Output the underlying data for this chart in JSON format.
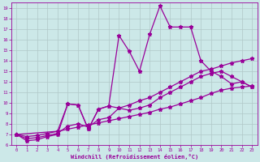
{
  "xlabel": "Windchill (Refroidissement éolien,°C)",
  "bg_color": "#cce8e8",
  "line_color": "#990099",
  "grid_color": "#b0c8c8",
  "xlim": [
    -0.5,
    23.5
  ],
  "ylim": [
    6,
    19.5
  ],
  "xticks": [
    0,
    1,
    2,
    3,
    4,
    5,
    6,
    7,
    8,
    9,
    10,
    11,
    12,
    13,
    14,
    15,
    16,
    17,
    18,
    19,
    20,
    21,
    22,
    23
  ],
  "yticks": [
    6,
    7,
    8,
    9,
    10,
    11,
    12,
    13,
    14,
    15,
    16,
    17,
    18,
    19
  ],
  "line1_x": [
    0,
    1,
    2,
    3,
    4,
    5,
    6,
    7,
    8,
    9,
    10,
    11,
    12,
    13,
    14,
    15,
    16,
    17,
    18,
    19,
    20,
    21,
    22,
    23
  ],
  "line1_y": [
    7.0,
    6.4,
    6.5,
    6.8,
    7.0,
    9.9,
    9.8,
    7.5,
    9.4,
    9.7,
    16.4,
    14.9,
    13.0,
    16.5,
    19.2,
    17.2,
    17.2,
    17.2,
    14.0,
    13.0,
    12.5,
    11.8,
    12.0,
    11.5
  ],
  "line2_x": [
    0,
    1,
    2,
    3,
    4,
    5,
    6,
    7,
    8,
    9,
    10,
    11,
    12,
    13,
    14,
    15,
    16,
    17,
    18,
    19,
    20,
    21,
    22,
    23
  ],
  "line2_y": [
    7.0,
    6.8,
    6.9,
    7.1,
    7.3,
    7.5,
    7.7,
    7.9,
    8.1,
    8.3,
    8.5,
    8.7,
    8.9,
    9.1,
    9.4,
    9.6,
    9.9,
    10.2,
    10.5,
    10.9,
    11.2,
    11.4,
    11.5,
    11.6
  ],
  "line3_x": [
    0,
    4,
    5,
    6,
    7,
    8,
    9,
    10,
    11,
    12,
    13,
    14,
    15,
    16,
    17,
    18,
    19,
    20,
    21,
    22,
    23
  ],
  "line3_y": [
    7.0,
    7.3,
    9.9,
    9.8,
    7.5,
    9.4,
    9.7,
    9.5,
    9.3,
    9.5,
    9.8,
    10.5,
    11.0,
    11.5,
    12.0,
    12.5,
    12.8,
    13.0,
    12.5,
    12.0,
    11.5
  ],
  "line4_x": [
    0,
    1,
    2,
    3,
    4,
    5,
    6,
    7,
    8,
    9,
    10,
    11,
    12,
    13,
    14,
    15,
    16,
    17,
    18,
    19,
    20,
    21,
    22,
    23
  ],
  "line4_y": [
    7.0,
    6.6,
    6.7,
    6.9,
    7.1,
    7.8,
    8.0,
    7.7,
    8.4,
    8.6,
    9.5,
    9.8,
    10.2,
    10.5,
    11.0,
    11.5,
    12.0,
    12.5,
    13.0,
    13.2,
    13.5,
    13.8,
    14.0,
    14.2
  ]
}
